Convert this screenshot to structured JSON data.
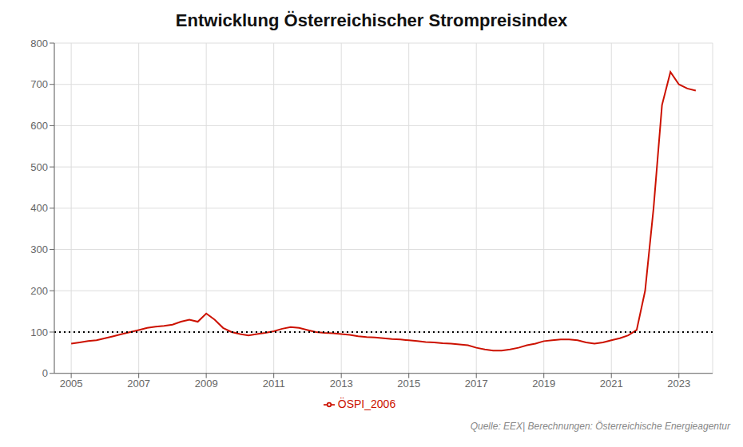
{
  "chart_data": {
    "type": "line",
    "title": "Entwicklung Österreichischer Strompreisindex",
    "source": "Quelle: EEX| Berechnungen: Österreichische Energieagentur",
    "x": [
      2005.0,
      2005.25,
      2005.5,
      2005.75,
      2006.0,
      2006.25,
      2006.5,
      2006.75,
      2007.0,
      2007.25,
      2007.5,
      2007.75,
      2008.0,
      2008.25,
      2008.5,
      2008.75,
      2009.0,
      2009.25,
      2009.5,
      2009.75,
      2010.0,
      2010.25,
      2010.5,
      2010.75,
      2011.0,
      2011.25,
      2011.5,
      2011.75,
      2012.0,
      2012.25,
      2012.5,
      2012.75,
      2013.0,
      2013.25,
      2013.5,
      2013.75,
      2014.0,
      2014.25,
      2014.5,
      2014.75,
      2015.0,
      2015.25,
      2015.5,
      2015.75,
      2016.0,
      2016.25,
      2016.5,
      2016.75,
      2017.0,
      2017.25,
      2017.5,
      2017.75,
      2018.0,
      2018.25,
      2018.5,
      2018.75,
      2019.0,
      2019.25,
      2019.5,
      2019.75,
      2020.0,
      2020.25,
      2020.5,
      2020.75,
      2021.0,
      2021.25,
      2021.5,
      2021.75,
      2022.0,
      2022.25,
      2022.5,
      2022.75,
      2023.0,
      2023.25,
      2023.5
    ],
    "series": [
      {
        "name": "ÖSPI_2006",
        "color": "#cc1100",
        "values": [
          72,
          75,
          78,
          80,
          85,
          90,
          95,
          100,
          105,
          110,
          113,
          115,
          118,
          125,
          130,
          125,
          145,
          130,
          110,
          100,
          95,
          92,
          95,
          98,
          102,
          108,
          112,
          110,
          105,
          100,
          98,
          97,
          95,
          93,
          90,
          88,
          87,
          85,
          83,
          82,
          80,
          78,
          76,
          75,
          73,
          72,
          70,
          68,
          62,
          58,
          55,
          55,
          58,
          62,
          68,
          72,
          78,
          80,
          82,
          82,
          80,
          75,
          72,
          75,
          80,
          85,
          92,
          105,
          200,
          400,
          650,
          730,
          700,
          690,
          685
        ]
      }
    ],
    "reference_lines": [
      {
        "value": 100,
        "color": "#000000",
        "line_style": "dotted"
      }
    ],
    "xlim": [
      2004.5,
      2024.0
    ],
    "xticks": [
      2005,
      2007,
      2009,
      2011,
      2013,
      2015,
      2017,
      2019,
      2021,
      2023
    ],
    "ylim": [
      0,
      800
    ],
    "yticks": [
      0,
      100,
      200,
      300,
      400,
      500,
      600,
      700,
      800
    ],
    "grid": true,
    "legend": "bottom"
  }
}
